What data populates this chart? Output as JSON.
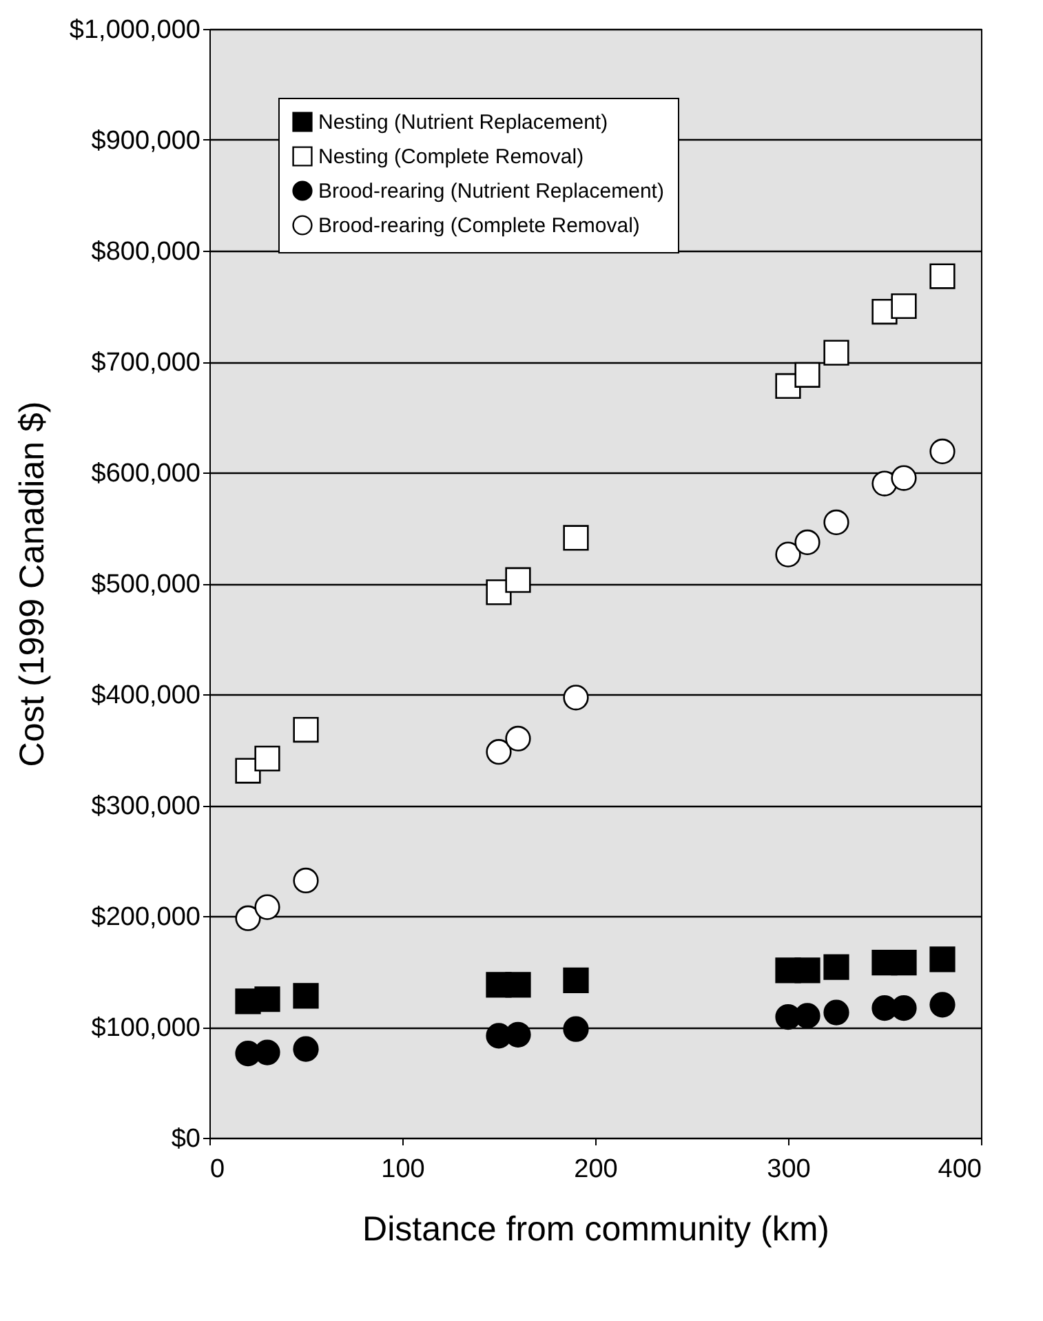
{
  "chart_data": {
    "type": "scatter",
    "xlabel": "Distance from community (km)",
    "ylabel": "Cost (1999 Canadian $)",
    "x": [
      20,
      30,
      50,
      150,
      160,
      190,
      300,
      310,
      325,
      350,
      360,
      380
    ],
    "series": [
      {
        "name": "Nesting (Nutrient Replacement)",
        "color": "#000000",
        "marker": "square",
        "values": [
          123000,
          125000,
          128000,
          138000,
          138000,
          142000,
          151000,
          151000,
          154000,
          158000,
          158000,
          161000
        ]
      },
      {
        "name": "Nesting (Complete Removal)",
        "color": "#ffffff",
        "marker": "square",
        "values": [
          331000,
          342000,
          368000,
          492000,
          503000,
          541000,
          678000,
          688000,
          708000,
          745000,
          750000,
          777000
        ]
      },
      {
        "name": "Brood-rearing (Nutrient Replacement)",
        "color": "#000000",
        "marker": "circle",
        "values": [
          76000,
          77000,
          80000,
          92000,
          93000,
          98000,
          109000,
          110000,
          113000,
          117000,
          117000,
          120000
        ]
      },
      {
        "name": "Brood-rearing (Complete Removal)",
        "color": "#ffffff",
        "marker": "circle",
        "values": [
          198000,
          208000,
          232000,
          348000,
          360000,
          397000,
          526000,
          537000,
          555000,
          590000,
          595000,
          619000
        ]
      }
    ],
    "xlim": [
      0,
      400
    ],
    "xticks": [
      0,
      100,
      200,
      300,
      400
    ],
    "ylim": [
      0,
      1000000
    ],
    "yticks": [
      {
        "value": 0,
        "label": "$0"
      },
      {
        "value": 100000,
        "label": "$100,000"
      },
      {
        "value": 200000,
        "label": "$200,000"
      },
      {
        "value": 300000,
        "label": "$300,000"
      },
      {
        "value": 400000,
        "label": "$400,000"
      },
      {
        "value": 500000,
        "label": "$500,000"
      },
      {
        "value": 600000,
        "label": "$600,000"
      },
      {
        "value": 700000,
        "label": "$700,000"
      },
      {
        "value": 800000,
        "label": "$800,000"
      },
      {
        "value": 900000,
        "label": "$900,000"
      },
      {
        "value": 1000000,
        "label": "$1,000,000"
      }
    ],
    "grid": "y",
    "legend": "top left"
  }
}
